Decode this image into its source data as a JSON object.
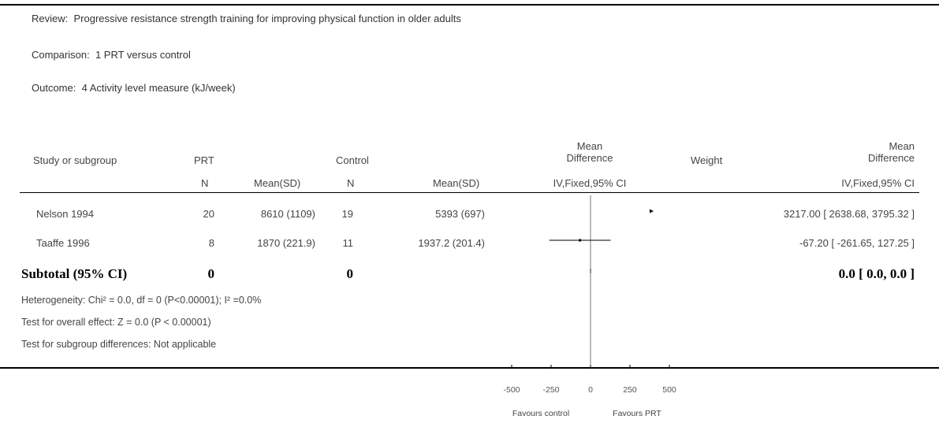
{
  "header": {
    "review_label": "Review:",
    "review": "Progressive resistance strength training for improving physical function in older adults",
    "comparison_label": "Comparison:",
    "comparison": "1 PRT versus control",
    "outcome_label": "Outcome:",
    "outcome": "4 Activity level measure (kJ/week)"
  },
  "columns": {
    "study": "Study or subgroup",
    "prt": "PRT",
    "prt_n": "N",
    "prt_mean": "Mean(SD)",
    "control": "Control",
    "control_n": "N",
    "control_mean": "Mean(SD)",
    "md_line1": "Mean",
    "md_line2": "Difference",
    "md_method": "IV,Fixed,95% CI",
    "weight": "Weight",
    "md2_line1": "Mean",
    "md2_line2": "Difference",
    "md2_method": "IV,Fixed,95% CI"
  },
  "studies": [
    {
      "name": "Nelson 1994",
      "prt_n": "20",
      "prt_mean": "8610 (1109)",
      "control_n": "19",
      "control_mean": "5393 (697)",
      "weight": "",
      "ci_text": "3217.00 [ 2638.68, 3795.32 ]"
    },
    {
      "name": "Taaffe 1996",
      "prt_n": "8",
      "prt_mean": "1870 (221.9)",
      "control_n": "11",
      "control_mean": "1937.2 (201.4)",
      "weight": "",
      "ci_text": "-67.20 [ -261.65, 127.25 ]"
    }
  ],
  "subtotal": {
    "label": "Subtotal (95% CI)",
    "prt_n": "0",
    "control_n": "0",
    "ci_text": "0.0 [ 0.0, 0.0 ]"
  },
  "notes": {
    "heterogeneity": "Heterogeneity: Chi² = 0.0, df = 0 (P<0.00001); I² =0.0%",
    "overall": "Test for overall effect: Z = 0.0 (P < 0.00001)",
    "subgroup": "Test for subgroup differences: Not applicable"
  },
  "axis": {
    "ticks": [
      "-500",
      "-250",
      "0",
      "250",
      "500"
    ],
    "favours_left": "Favours control",
    "favours_right": "Favours PRT"
  },
  "chart_data": {
    "type": "scatter",
    "xlim": [
      -500,
      500
    ],
    "ticks": [
      -500,
      -250,
      0,
      250,
      500
    ],
    "studies": [
      {
        "name": "Nelson 1994",
        "md": 3217.0,
        "lower": 2638.68,
        "upper": 3795.32,
        "clipped": true
      },
      {
        "name": "Taaffe 1996",
        "md": -67.2,
        "lower": -261.65,
        "upper": 127.25,
        "clipped": false
      }
    ],
    "subtotal": {
      "md": 0.0,
      "lower": 0.0,
      "upper": 0.0
    }
  }
}
